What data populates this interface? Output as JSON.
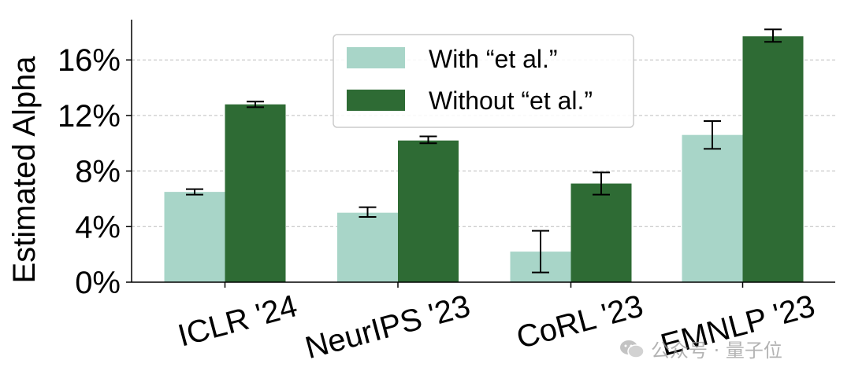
{
  "chart_data": {
    "type": "bar",
    "title": "",
    "xlabel": "",
    "ylabel": "Estimated Alpha",
    "ylim": [
      0,
      18.5
    ],
    "yticks": [
      0,
      4,
      8,
      12,
      16
    ],
    "ytick_labels": [
      "0%",
      "4%",
      "8%",
      "12%",
      "16%"
    ],
    "grid": true,
    "legend_position": "top-center",
    "categories": [
      "ICLR '24",
      "NeurIPS '23",
      "CoRL '23",
      "EMNLP '23"
    ],
    "series": [
      {
        "name": "With “et al.”",
        "color": "#a8d5c8",
        "values": [
          6.5,
          5.0,
          2.2,
          10.6
        ],
        "err_low": [
          6.3,
          4.7,
          0.7,
          9.6
        ],
        "err_high": [
          6.7,
          5.4,
          3.7,
          11.6
        ]
      },
      {
        "name": "Without “et al.”",
        "color": "#2e6b34",
        "values": [
          12.8,
          10.2,
          7.1,
          17.7
        ],
        "err_low": [
          12.6,
          10.0,
          6.3,
          17.3
        ],
        "err_high": [
          13.0,
          10.5,
          7.9,
          18.2
        ]
      }
    ]
  },
  "watermark": {
    "text": "公众号 · 量子位",
    "icon": "wechat-icon"
  }
}
